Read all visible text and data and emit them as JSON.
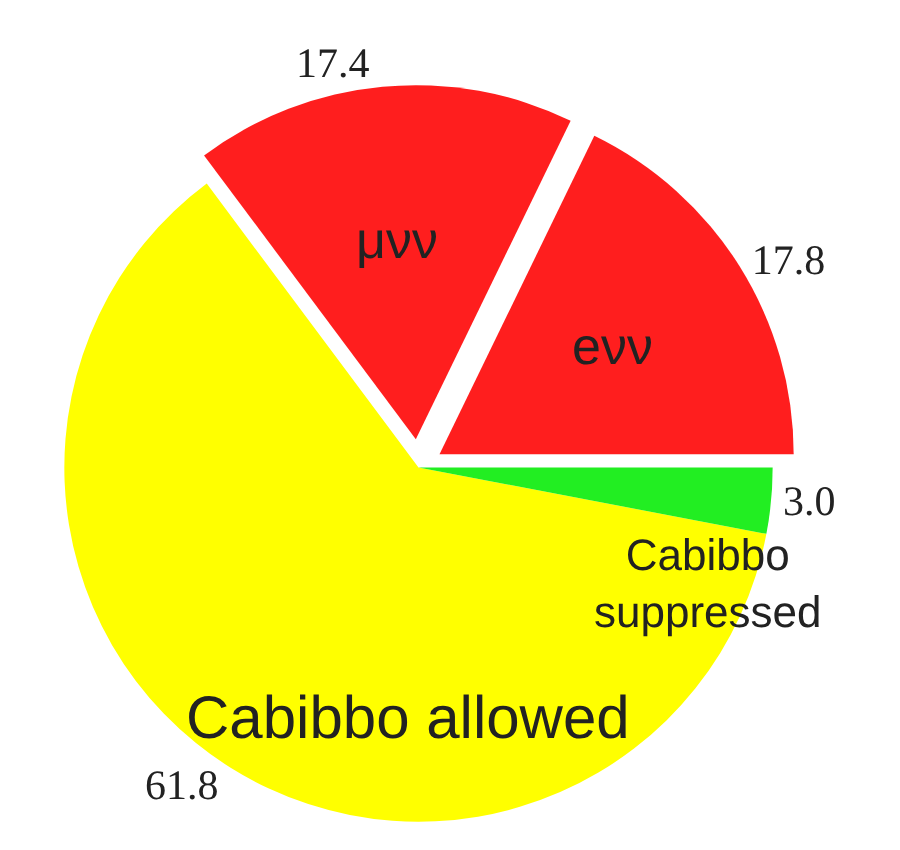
{
  "chart_data": {
    "type": "pie",
    "categories": [
      "eνν",
      "μνν",
      "Cabibbo allowed",
      "Cabibbo suppressed"
    ],
    "values": [
      17.8,
      17.4,
      61.8,
      3.0
    ],
    "colors": [
      "#ff1e1e",
      "#ff1e1e",
      "#ffff00",
      "#22ee22"
    ],
    "value_labels": [
      "17.8",
      "17.4",
      "61.8",
      "3.0"
    ]
  }
}
